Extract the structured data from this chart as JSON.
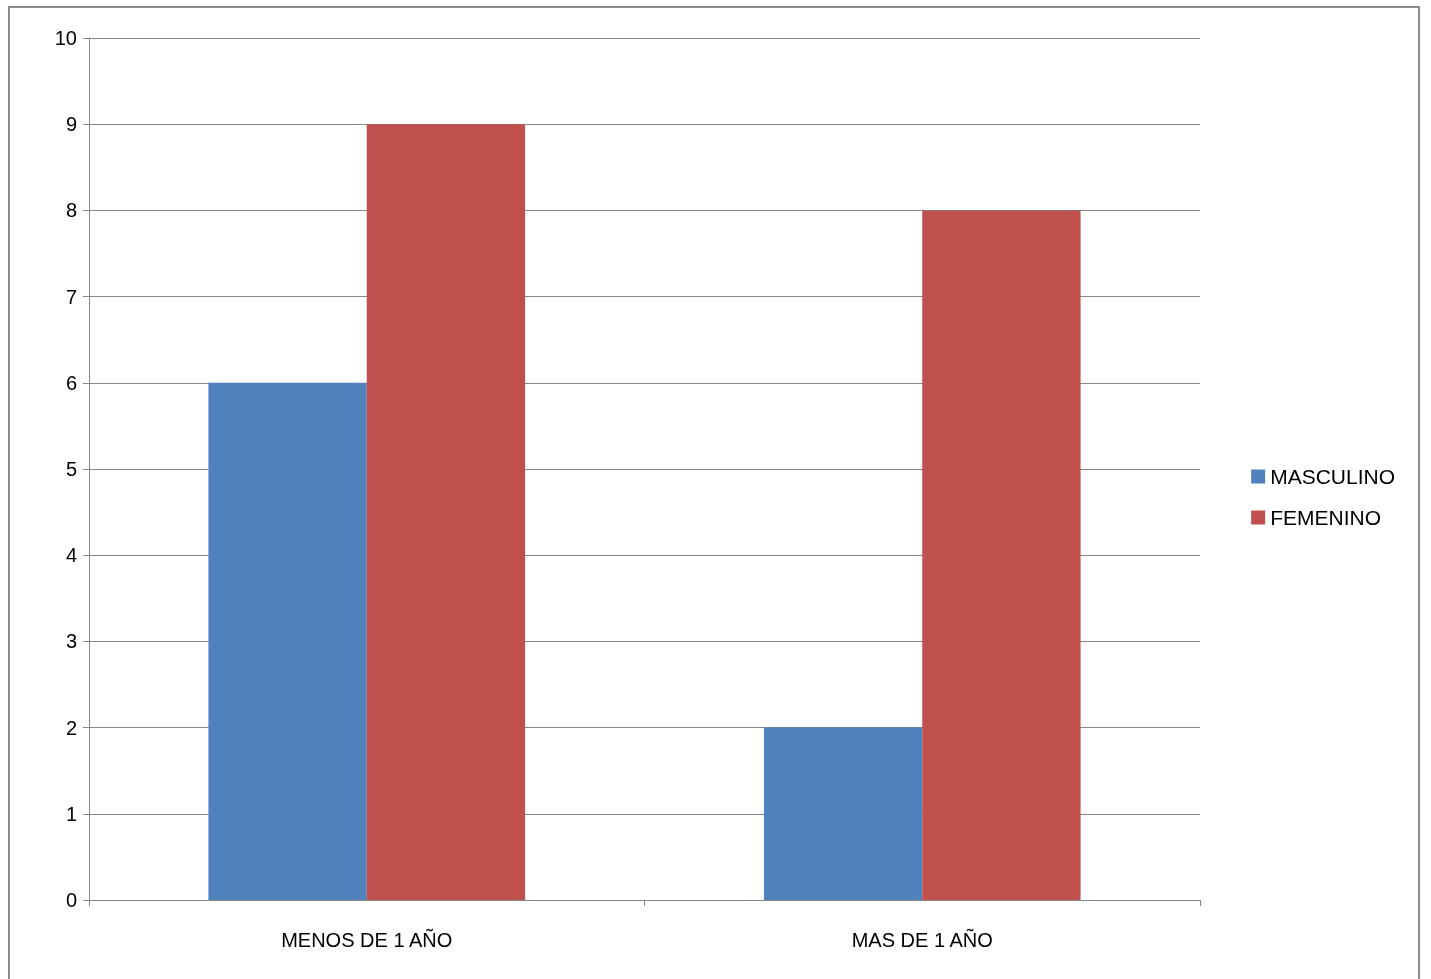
{
  "chart_data": {
    "type": "bar",
    "categories": [
      "MENOS DE 1 AÑO",
      "MAS DE 1 AÑO"
    ],
    "series": [
      {
        "name": "MASCULINO",
        "color": "#4f81bd",
        "values": [
          6,
          2
        ]
      },
      {
        "name": "FEMENINO",
        "color": "#c0504d",
        "values": [
          9,
          8
        ]
      }
    ],
    "ylim": [
      0,
      10
    ],
    "yticks": [
      0,
      1,
      2,
      3,
      4,
      5,
      6,
      7,
      8,
      9,
      10
    ],
    "grid": "y",
    "legend": "right"
  }
}
